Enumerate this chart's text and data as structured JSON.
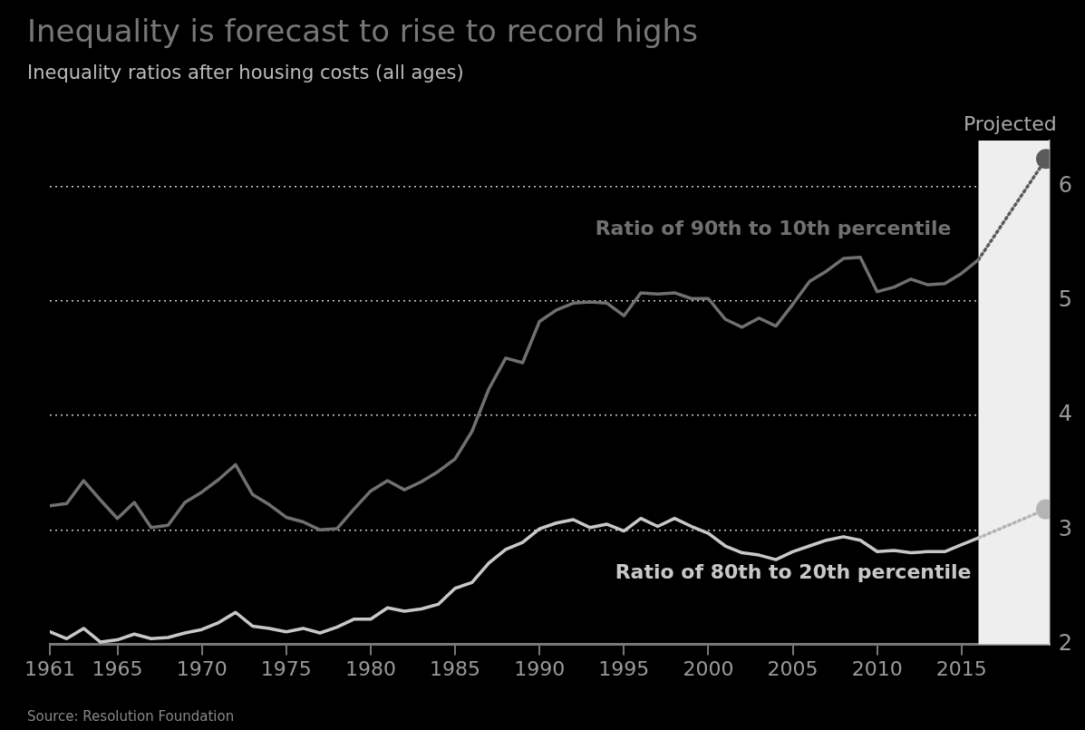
{
  "chart_data": {
    "type": "line",
    "title": "Inequality is forecast to rise to record highs",
    "subtitle": "Inequality ratios after housing costs (all ages)",
    "annotations": [
      "Source: Resolution Foundation"
    ],
    "series": [
      {
        "name": "Ratio of 90th to 10th percentile",
        "color": "#707070",
        "x": [
          1961,
          1962,
          1963,
          1964,
          1965,
          1966,
          1967,
          1968,
          1969,
          1970,
          1971,
          1972,
          1973,
          1974,
          1975,
          1976,
          1977,
          1978,
          1979,
          1980,
          1981,
          1982,
          1983,
          1984,
          1985,
          1986,
          1987,
          1988,
          1989,
          1990,
          1991,
          1992,
          1993,
          1994,
          1995,
          1996,
          1997,
          1998,
          1999,
          2000,
          2001,
          2002,
          2003,
          2004,
          2005,
          2006,
          2007,
          2008,
          2009,
          2010,
          2011,
          2012,
          2013,
          2014,
          2015,
          2016
        ],
        "values": [
          3.21,
          3.23,
          3.43,
          3.26,
          3.1,
          3.24,
          3.02,
          3.04,
          3.24,
          3.33,
          3.44,
          3.57,
          3.31,
          3.22,
          3.11,
          3.07,
          3.0,
          3.01,
          3.18,
          3.34,
          3.43,
          3.35,
          3.42,
          3.51,
          3.62,
          3.86,
          4.23,
          4.5,
          4.46,
          4.82,
          4.92,
          4.98,
          4.99,
          4.98,
          4.87,
          5.07,
          5.06,
          5.07,
          5.02,
          5.02,
          4.84,
          4.77,
          4.85,
          4.78,
          4.97,
          5.17,
          5.26,
          5.37,
          5.38,
          5.08,
          5.12,
          5.19,
          5.14,
          5.15,
          5.24,
          5.36
        ]
      },
      {
        "name": "Ratio of 80th to 20th percentile",
        "color": "#c8c8c8",
        "x": [
          1961,
          1962,
          1963,
          1964,
          1965,
          1966,
          1967,
          1968,
          1969,
          1970,
          1971,
          1972,
          1973,
          1974,
          1975,
          1976,
          1977,
          1978,
          1979,
          1980,
          1981,
          1982,
          1983,
          1984,
          1985,
          1986,
          1987,
          1988,
          1989,
          1990,
          1991,
          1992,
          1993,
          1994,
          1995,
          1996,
          1997,
          1998,
          1999,
          2000,
          2001,
          2002,
          2003,
          2004,
          2005,
          2006,
          2007,
          2008,
          2009,
          2010,
          2011,
          2012,
          2013,
          2014,
          2015,
          2016
        ],
        "values": [
          2.11,
          2.05,
          2.14,
          2.02,
          2.04,
          2.09,
          2.05,
          2.06,
          2.1,
          2.13,
          2.19,
          2.28,
          2.16,
          2.14,
          2.11,
          2.14,
          2.1,
          2.15,
          2.22,
          2.22,
          2.32,
          2.29,
          2.31,
          2.35,
          2.49,
          2.54,
          2.71,
          2.83,
          2.89,
          3.01,
          3.06,
          3.09,
          3.02,
          3.05,
          2.99,
          3.1,
          3.03,
          3.1,
          3.03,
          2.97,
          2.86,
          2.8,
          2.78,
          2.74,
          2.81,
          2.86,
          2.91,
          2.94,
          2.91,
          2.81,
          2.82,
          2.8,
          2.81,
          2.81,
          2.87,
          2.93
        ]
      },
      {
        "color": "#5a5a5a",
        "x": [
          2016,
          2020
        ],
        "values": [
          5.36,
          6.24
        ],
        "line_style": "dotted",
        "marker": "circle"
      },
      {
        "color": "#b4b4b4",
        "x": [
          2016,
          2020
        ],
        "values": [
          2.93,
          3.18
        ],
        "line_style": "dotted",
        "marker": "circle"
      }
    ],
    "bands": [
      {
        "axis": "x",
        "from": 2016,
        "to": 2020.2,
        "label": "Projected",
        "color": "#eeeeee"
      }
    ],
    "xlim": [
      1961,
      2020.2
    ],
    "xticks": [
      1961,
      1965,
      1970,
      1975,
      1980,
      1985,
      1990,
      1995,
      2000,
      2005,
      2010,
      2015
    ],
    "ylim": [
      2,
      6.4
    ],
    "yticks": [
      2,
      3,
      4,
      5,
      6
    ],
    "grid": "y",
    "legend": false
  }
}
